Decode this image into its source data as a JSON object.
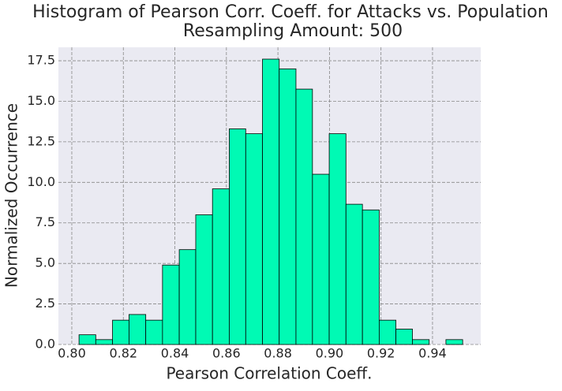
{
  "chart_data": {
    "type": "histogram",
    "title": "Histogram of Pearson Corr. Coeff. for Attacks vs. Population",
    "subtitle": "Resampling Amount: 500",
    "x_label": "Pearson Correlation Coeff.",
    "y_label": "Normalized Occurrence",
    "bins": [
      0.8028,
      0.8093,
      0.8158,
      0.8222,
      0.8287,
      0.8352,
      0.8417,
      0.8481,
      0.8546,
      0.8611,
      0.8675,
      0.874,
      0.8805,
      0.887,
      0.8934,
      0.8999,
      0.9064,
      0.9128,
      0.9193,
      0.9258,
      0.9322,
      0.9387,
      0.9452,
      0.9517
    ],
    "values": [
      0.6,
      0.3,
      1.5,
      1.85,
      1.5,
      4.9,
      5.85,
      8.0,
      9.6,
      13.3,
      13.0,
      17.6,
      17.0,
      15.75,
      10.5,
      13.0,
      8.65,
      8.3,
      1.5,
      0.95,
      0.3,
      0,
      0.3
    ],
    "color": "#00fab4",
    "xlim": [
      0.7948,
      0.9587
    ],
    "ylim": [
      0,
      18.33
    ],
    "xticks": [
      {
        "value": 0.8,
        "label": "0.80"
      },
      {
        "value": 0.82,
        "label": "0.82"
      },
      {
        "value": 0.84,
        "label": "0.84"
      },
      {
        "value": 0.86,
        "label": "0.86"
      },
      {
        "value": 0.88,
        "label": "0.88"
      },
      {
        "value": 0.9,
        "label": "0.90"
      },
      {
        "value": 0.92,
        "label": "0.92"
      },
      {
        "value": 0.94,
        "label": "0.94"
      }
    ],
    "yticks": [
      {
        "value": 0,
        "label": "0.0"
      },
      2.5,
      {
        "value": 5,
        "label": "5.0"
      },
      7.5,
      {
        "value": 10,
        "label": "10.0"
      },
      12.5,
      {
        "value": 15,
        "label": "15.0"
      },
      17.5
    ],
    "grid": true
  }
}
